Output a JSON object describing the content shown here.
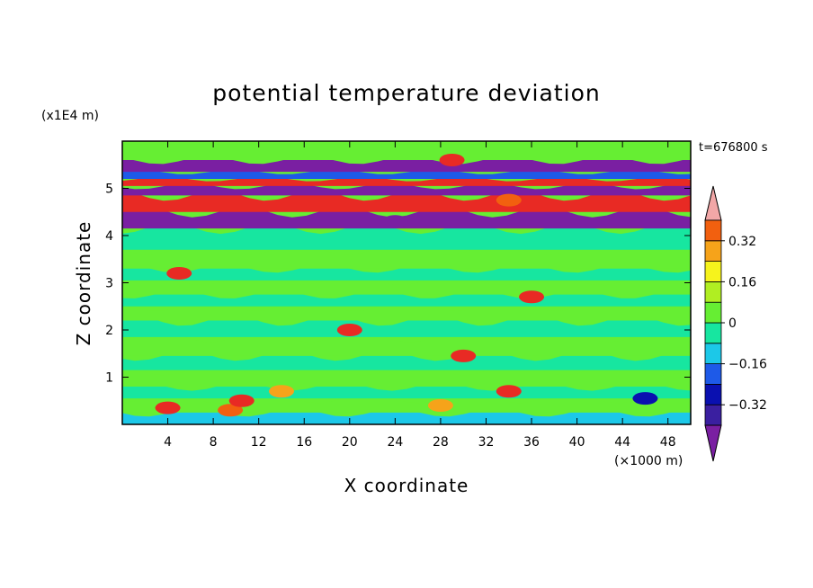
{
  "chart_data": {
    "type": "heatmap",
    "title": "potential temperature deviation",
    "xlabel": "X coordinate",
    "ylabel": "Z coordinate",
    "x_unit": "(×1000 m)",
    "y_unit": "(x1E4 m)",
    "time_label": "t=676800 s",
    "xlim": [
      0,
      50
    ],
    "ylim": [
      0,
      6
    ],
    "x_ticks": [
      4,
      8,
      12,
      16,
      20,
      24,
      28,
      32,
      36,
      40,
      44,
      48
    ],
    "y_ticks": [
      1,
      2,
      3,
      4,
      5
    ],
    "colorbar": {
      "levels": [
        -0.48,
        -0.4,
        -0.32,
        -0.24,
        -0.16,
        -0.08,
        0,
        0.08,
        0.16,
        0.24,
        0.32,
        0.4,
        0.48
      ],
      "colors": [
        "#7a1fa2",
        "#3a1fa0",
        "#0a10b0",
        "#1e5ae8",
        "#1cc8e8",
        "#17e6a0",
        "#66ee33",
        "#b0ee22",
        "#f6f31c",
        "#f6a31a",
        "#f2600f",
        "#e82a24",
        "#f2a7a7"
      ],
      "labels": [
        "0.32",
        "0.16",
        "0",
        "−0.16",
        "−0.32"
      ],
      "label_values": [
        0.32,
        0.16,
        0,
        -0.16,
        -0.32
      ],
      "extend": "both"
    },
    "bands": [
      {
        "z0": 0.0,
        "z1": 0.25,
        "value": -0.1
      },
      {
        "z0": 0.25,
        "z1": 0.55,
        "value": 0.05
      },
      {
        "z0": 0.55,
        "z1": 0.8,
        "value": -0.06
      },
      {
        "z0": 0.8,
        "z1": 1.15,
        "value": 0.04
      },
      {
        "z0": 1.15,
        "z1": 1.45,
        "value": -0.04
      },
      {
        "z0": 1.45,
        "z1": 1.85,
        "value": 0.05
      },
      {
        "z0": 1.85,
        "z1": 2.2,
        "value": -0.04
      },
      {
        "z0": 2.2,
        "z1": 2.5,
        "value": 0.05
      },
      {
        "z0": 2.5,
        "z1": 2.75,
        "value": -0.05
      },
      {
        "z0": 2.75,
        "z1": 3.05,
        "value": 0.04
      },
      {
        "z0": 3.05,
        "z1": 3.3,
        "value": -0.04
      },
      {
        "z0": 3.3,
        "z1": 3.7,
        "value": 0.05
      },
      {
        "z0": 3.7,
        "z1": 4.15,
        "value": -0.03
      },
      {
        "z0": 4.15,
        "z1": 4.5,
        "value": -0.46
      },
      {
        "z0": 4.5,
        "z1": 4.85,
        "value": 0.46
      },
      {
        "z0": 4.85,
        "z1": 5.05,
        "value": -0.46
      },
      {
        "z0": 5.05,
        "z1": 5.2,
        "value": 0.46
      },
      {
        "z0": 5.2,
        "z1": 5.35,
        "value": -0.2
      },
      {
        "z0": 5.35,
        "z1": 5.6,
        "value": -0.46
      },
      {
        "z0": 5.6,
        "z1": 6.0,
        "value": 0.05
      }
    ],
    "features": [
      {
        "x": 4,
        "z": 0.35,
        "value": 0.45
      },
      {
        "x": 9.5,
        "z": 0.3,
        "value": 0.34
      },
      {
        "x": 10.5,
        "z": 0.5,
        "value": 0.45
      },
      {
        "x": 14,
        "z": 0.7,
        "value": 0.25
      },
      {
        "x": 34,
        "z": 0.7,
        "value": 0.46
      },
      {
        "x": 46,
        "z": 0.55,
        "value": -0.3
      },
      {
        "x": 28,
        "z": 0.4,
        "value": 0.3
      },
      {
        "x": 20,
        "z": 2.0,
        "value": 0.46
      },
      {
        "x": 30,
        "z": 1.45,
        "value": 0.46
      },
      {
        "x": 5,
        "z": 3.2,
        "value": 0.46
      },
      {
        "x": 36,
        "z": 2.7,
        "value": 0.46
      },
      {
        "x": 29,
        "z": 5.6,
        "value": 0.46
      },
      {
        "x": 24,
        "z": 4.3,
        "value": -0.46
      },
      {
        "x": 34,
        "z": 4.75,
        "value": 0.35
      }
    ]
  }
}
